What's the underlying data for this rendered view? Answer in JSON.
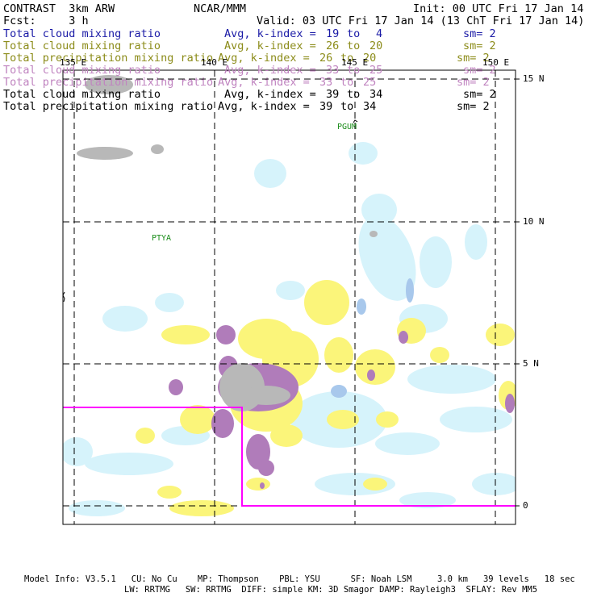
{
  "header": {
    "model": "CONTRAST  3km ARW",
    "center": "NCAR/MMM",
    "init": "Init: 00 UTC Fri 17 Jan 14",
    "fcst": "Fcst:     3 h",
    "valid": "Valid: 03 UTC Fri 17 Jan 14 (13 ChT Fri 17 Jan 14)"
  },
  "legend": [
    {
      "field": "Total cloud mixing ratio",
      "avg": "Avg, k-index =",
      "k1": "19",
      "to": "to",
      "k2": "4",
      "sm": "sm= 2",
      "color": "#1a1aa6"
    },
    {
      "field": "Total cloud mixing ratio",
      "avg": "Avg, k-index =",
      "k1": "26",
      "to": "to",
      "k2": "20",
      "sm": "sm= 2",
      "color": "#8c8c1a"
    },
    {
      "field": "Total precipitation mixing ratio",
      "avg": "Avg, k-index =",
      "k1": "26",
      "to": "to",
      "k2": "20",
      "sm": "sm= 2",
      "color": "#8c8c1a"
    },
    {
      "field": "Total cloud mixing ratio",
      "avg": "Avg, k-index =",
      "k1": "33",
      "to": "to",
      "k2": "25",
      "sm": "sm= 2",
      "color": "#c084c0"
    },
    {
      "field": "Total precipitation mixing ratio",
      "avg": "Avg, k-index =",
      "k1": "33",
      "to": "to",
      "k2": "25",
      "sm": "sm= 2",
      "color": "#c084c0"
    },
    {
      "field": "Total cloud mixing ratio",
      "avg": "Avg, k-index =",
      "k1": "39",
      "to": "to",
      "k2": "34",
      "sm": "sm= 2",
      "color": "#000000"
    },
    {
      "field": "Total precipitation mixing ratio",
      "avg": "Avg, k-index =",
      "k1": "39",
      "to": "to",
      "k2": "34",
      "sm": "sm= 2",
      "color": "#000000"
    }
  ],
  "map": {
    "lon_labels": [
      "135 E",
      "140 E",
      "145 E",
      "150 E"
    ],
    "lat_labels": [
      "15 N",
      "10 N",
      "5 N",
      "0"
    ],
    "stations": [
      "PGUM",
      "PTYA"
    ],
    "colors": {
      "light_blue": "#d6f3fb",
      "yellow": "#fbf57a",
      "purple": "#b07cba",
      "gray": "#b8b8b8",
      "blue": "#a8c8ec",
      "magenta": "#ff00ff"
    }
  },
  "footer": {
    "line1": "Model Info: V3.5.1   CU: No Cu    MP: Thompson    PBL: YSU      SF: Noah LSM     3.0 km   39 levels   18 sec",
    "line2": "LW: RRTMG   SW: RRTMG  DIFF: simple KM: 3D Smagor DAMP: Rayleigh3  SFLAY: Rev MM5"
  }
}
